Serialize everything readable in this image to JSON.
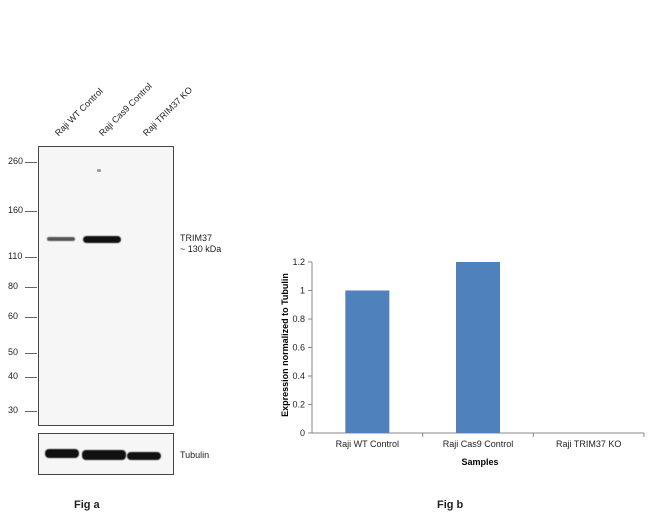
{
  "fig_a": {
    "lanes": [
      "Raji WT Control",
      "Raji Cas9 Control",
      "Raji TRIM37 KO"
    ],
    "markers": [
      "260",
      "160",
      "110",
      "80",
      "60",
      "50",
      "40",
      "30"
    ],
    "band_label_line1": "TRIM37",
    "band_label_line2": "~ 130 kDa",
    "tubulin_label": "Tubulin",
    "fig_label": "Fig a"
  },
  "fig_b": {
    "fig_label": "Fig b"
  },
  "chart_data": {
    "type": "bar",
    "categories": [
      "Raji WT Control",
      "Raji Cas9 Control",
      "Raji TRIM37 KO"
    ],
    "values": [
      1.0,
      1.2,
      0.0
    ],
    "xlabel": "Samples",
    "ylabel": "Expression  normalized to Tubulin",
    "ylim": [
      0,
      1.2
    ],
    "yticks": [
      "0",
      "0.2",
      "0.4",
      "0.6",
      "0.8",
      "1",
      "1.2"
    ],
    "bar_color": "#4f81bd",
    "grid": false,
    "legend": "none"
  }
}
